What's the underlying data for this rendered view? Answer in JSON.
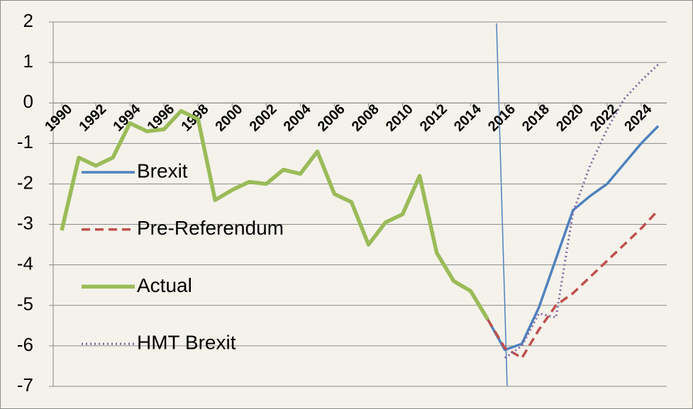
{
  "chart_data": {
    "type": "line",
    "x": [
      1990,
      1991,
      1992,
      1993,
      1994,
      1995,
      1996,
      1997,
      1998,
      1999,
      2000,
      2001,
      2002,
      2003,
      2004,
      2005,
      2006,
      2007,
      2008,
      2009,
      2010,
      2011,
      2012,
      2013,
      2014,
      2015,
      2016,
      2017,
      2018,
      2019,
      2020,
      2021,
      2022,
      2023,
      2024,
      2025
    ],
    "series": [
      {
        "name": "Brexit",
        "color": "#4f81bd",
        "values": [
          null,
          null,
          null,
          null,
          null,
          null,
          null,
          null,
          null,
          null,
          null,
          null,
          null,
          null,
          null,
          null,
          null,
          null,
          null,
          null,
          null,
          null,
          null,
          null,
          null,
          -5.35,
          -6.1,
          -5.95,
          -5.05,
          -3.85,
          -2.65,
          -2.3,
          -2.0,
          -1.5,
          -1.0,
          -0.57
        ]
      },
      {
        "name": "Pre-Referendum",
        "color": "#c0504d",
        "values": [
          null,
          null,
          null,
          null,
          null,
          null,
          null,
          null,
          null,
          null,
          null,
          null,
          null,
          null,
          null,
          null,
          null,
          null,
          null,
          null,
          null,
          null,
          null,
          null,
          null,
          -5.35,
          -6.05,
          -6.3,
          -5.6,
          -5.0,
          -4.7,
          -4.3,
          -3.9,
          -3.5,
          -3.1,
          -2.65
        ]
      },
      {
        "name": "Actual",
        "color": "#9bbb59",
        "values": [
          -3.15,
          -1.35,
          -1.55,
          -1.35,
          -0.5,
          -0.7,
          -0.65,
          -0.2,
          -0.4,
          -2.4,
          -2.15,
          -1.95,
          -2.0,
          -1.65,
          -1.75,
          -1.2,
          -2.25,
          -2.45,
          -3.5,
          -2.95,
          -2.75,
          -1.8,
          -3.7,
          -4.4,
          -4.65,
          -5.35,
          null,
          null,
          null,
          null,
          null,
          null,
          null,
          null,
          null,
          null
        ]
      },
      {
        "name": "HMT Brexit",
        "color": "#8064a2",
        "values": [
          null,
          null,
          null,
          null,
          null,
          null,
          null,
          null,
          null,
          null,
          null,
          null,
          null,
          null,
          null,
          null,
          null,
          null,
          null,
          null,
          null,
          null,
          null,
          null,
          null,
          null,
          -6.3,
          -6.0,
          -5.2,
          -5.3,
          -2.7,
          -1.55,
          -0.65,
          0.1,
          0.55,
          0.95
        ]
      }
    ],
    "xlim": [
      1989.5,
      2025.5
    ],
    "xticks": [
      1990,
      1992,
      1994,
      1996,
      1998,
      2000,
      2002,
      2004,
      2006,
      2008,
      2010,
      2012,
      2014,
      2016,
      2018,
      2020,
      2022,
      2024
    ],
    "ylim": [
      -7,
      2
    ],
    "yticks": [
      -7,
      -6,
      -5,
      -4,
      -3,
      -2,
      -1,
      0,
      1,
      2
    ],
    "grid": true,
    "legend": "left"
  }
}
